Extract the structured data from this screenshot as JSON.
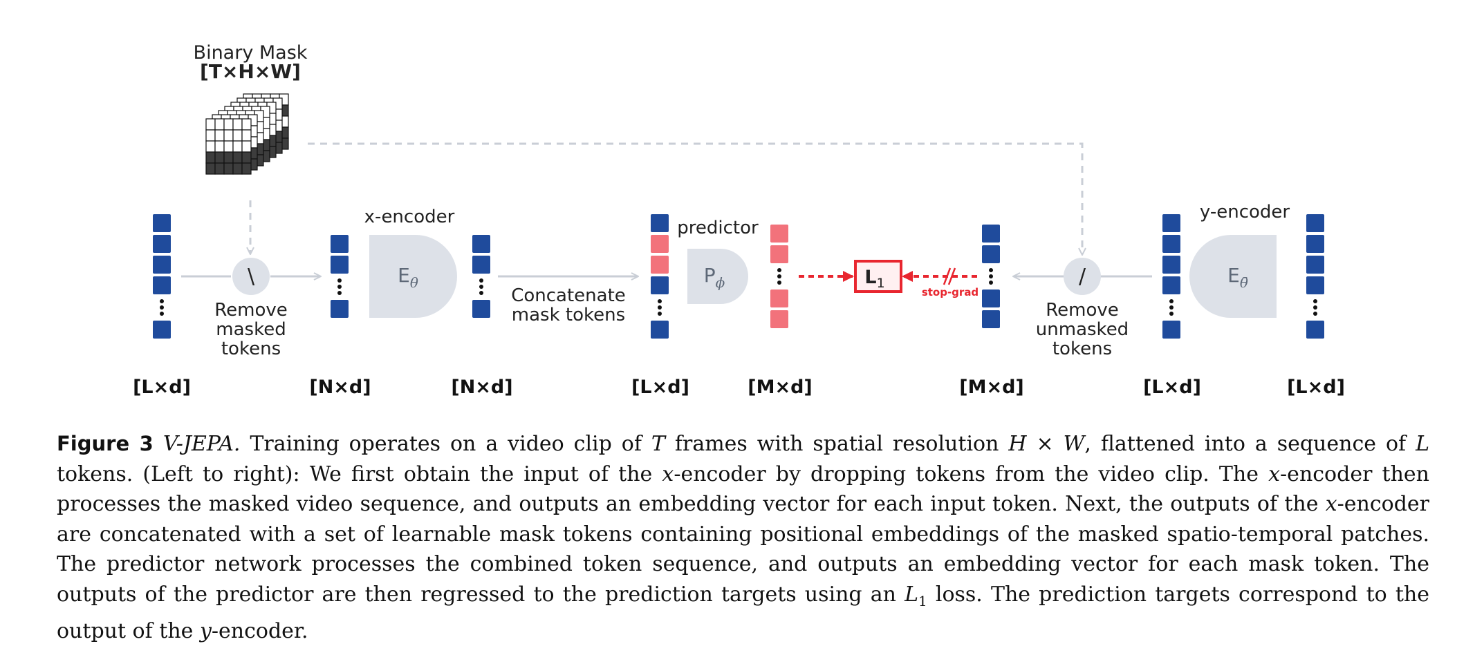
{
  "diagram": {
    "mask": {
      "title": "Binary Mask",
      "dims": "[T×H×W]"
    },
    "remove_masked": {
      "symbol": "\\",
      "lines": [
        "Remove",
        "masked",
        "tokens"
      ]
    },
    "x_encoder": {
      "title": "x-encoder",
      "symbol": "E",
      "subscript": "θ"
    },
    "concat": {
      "lines": [
        "Concatenate",
        "mask tokens"
      ]
    },
    "predictor": {
      "title": "predictor",
      "symbol": "P",
      "subscript": "ϕ"
    },
    "loss": {
      "symbol": "L",
      "subscript": "1"
    },
    "stop_grad": "stop-grad",
    "remove_unmasked": {
      "symbol": "/",
      "lines": [
        "Remove",
        "unmasked",
        "tokens"
      ]
    },
    "y_encoder": {
      "title": "y-encoder",
      "symbol": "E",
      "subscript": "θ̄"
    },
    "dims": [
      "[L×d]",
      "[N×d]",
      "[N×d]",
      "[L×d]",
      "[M×d]",
      "[M×d]",
      "[L×d]",
      "[L×d]"
    ],
    "colors": {
      "token_blue": "#1f4b9c",
      "mask_red": "#f2727b",
      "loss_red": "#e8262f",
      "encoder_gray": "#dde1e8",
      "arrow_gray": "#c9ced6"
    }
  },
  "caption": {
    "label": "Figure 3",
    "name": "V-JEPA.",
    "lines": [
      [
        "Training operates on a video clip of ",
        {
          "i": "T"
        },
        " frames with spatial resolution ",
        {
          "i": "H"
        },
        " × ",
        {
          "i": "W"
        },
        ", flattened into a sequence"
      ],
      [
        "of ",
        {
          "i": "L"
        },
        " tokens. (Left to right): We first obtain the input of the ",
        {
          "i": "x"
        },
        "-encoder by dropping tokens from the video clip. The"
      ],
      [
        {
          "i": "x"
        },
        "-encoder then processes the masked video sequence, and outputs an embedding vector for each input token. Next, the"
      ],
      [
        "outputs of the ",
        {
          "i": "x"
        },
        "-encoder are concatenated with a set of learnable mask tokens containing positional embeddings of the masked"
      ],
      [
        "spatio-temporal patches. The predictor network processes the combined token sequence, and outputs an embedding vector for"
      ],
      [
        "each mask token. The outputs of the predictor are then regressed to the prediction targets using an ",
        {
          "i": "L"
        },
        {
          "sub": "1"
        },
        " loss. The prediction"
      ],
      [
        "targets correspond to the output of the ",
        {
          "i": "y"
        },
        "-encoder."
      ]
    ]
  }
}
